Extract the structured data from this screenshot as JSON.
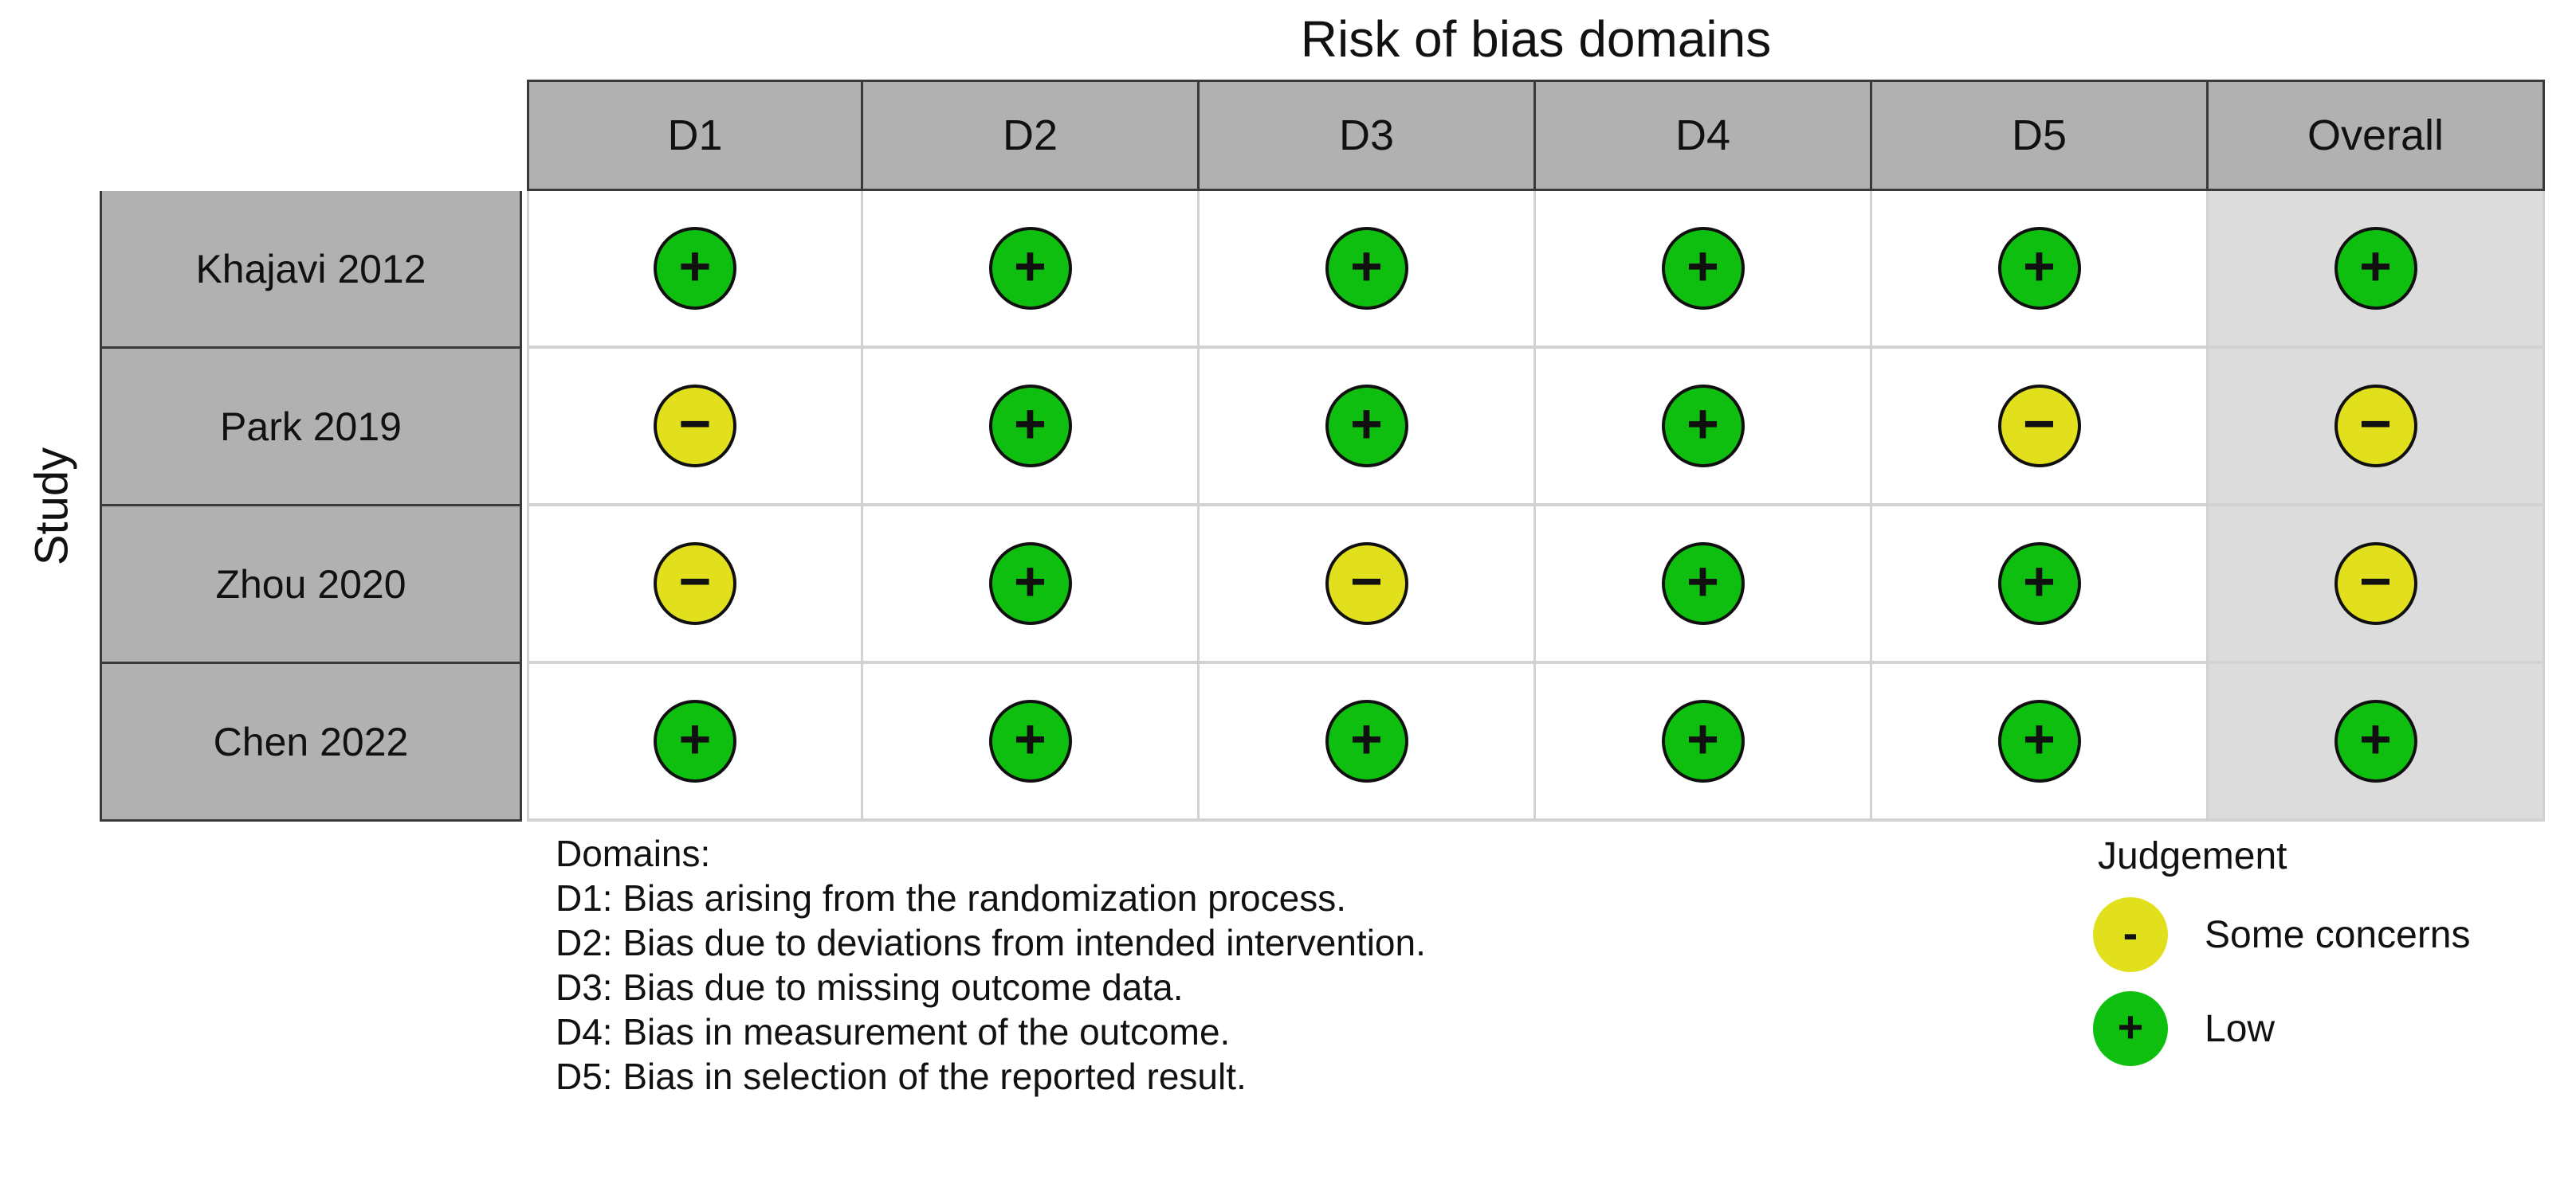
{
  "title": "Risk of bias domains",
  "y_axis_label": "Study",
  "columns": [
    "D1",
    "D2",
    "D3",
    "D4",
    "D5",
    "Overall"
  ],
  "matrix": {
    "rows": [
      {
        "study": "Khajavi 2012",
        "cells": [
          {
            "judgement": "low",
            "symbol": "+"
          },
          {
            "judgement": "low",
            "symbol": "+"
          },
          {
            "judgement": "low",
            "symbol": "+"
          },
          {
            "judgement": "low",
            "symbol": "+"
          },
          {
            "judgement": "low",
            "symbol": "+"
          },
          {
            "judgement": "low",
            "symbol": "+"
          }
        ]
      },
      {
        "study": "Park 2019",
        "cells": [
          {
            "judgement": "some-concerns",
            "symbol": "−"
          },
          {
            "judgement": "low",
            "symbol": "+"
          },
          {
            "judgement": "low",
            "symbol": "+"
          },
          {
            "judgement": "low",
            "symbol": "+"
          },
          {
            "judgement": "some-concerns",
            "symbol": "−"
          },
          {
            "judgement": "some-concerns",
            "symbol": "−"
          }
        ]
      },
      {
        "study": "Zhou 2020",
        "cells": [
          {
            "judgement": "some-concerns",
            "symbol": "−"
          },
          {
            "judgement": "low",
            "symbol": "+"
          },
          {
            "judgement": "some-concerns",
            "symbol": "−"
          },
          {
            "judgement": "low",
            "symbol": "+"
          },
          {
            "judgement": "low",
            "symbol": "+"
          },
          {
            "judgement": "some-concerns",
            "symbol": "−"
          }
        ]
      },
      {
        "study": "Chen 2022",
        "cells": [
          {
            "judgement": "low",
            "symbol": "+"
          },
          {
            "judgement": "low",
            "symbol": "+"
          },
          {
            "judgement": "low",
            "symbol": "+"
          },
          {
            "judgement": "low",
            "symbol": "+"
          },
          {
            "judgement": "low",
            "symbol": "+"
          },
          {
            "judgement": "low",
            "symbol": "+"
          }
        ]
      }
    ]
  },
  "footnotes": {
    "heading": "Domains:",
    "lines": [
      "D1: Bias arising from the randomization process.",
      "D2: Bias due to deviations from intended intervention.",
      "D3: Bias due to missing outcome data.",
      "D4: Bias in measurement of the outcome.",
      "D5: Bias in selection of the reported result."
    ]
  },
  "legend": {
    "title": "Judgement",
    "items": [
      {
        "symbol": "-",
        "label": "Some concerns",
        "judgement": "some-concerns",
        "color": "#e2df1d"
      },
      {
        "symbol": "+",
        "label": "Low",
        "judgement": "low",
        "color": "#0fbf0f"
      }
    ]
  },
  "colors": {
    "low": "#0fbf0f",
    "some_concerns": "#e2df1d",
    "header_bg": "#b1b1b1",
    "overall_column_bg": "#dcdcdc",
    "dark_border": "#3a3a3a",
    "light_grid": "#d2d2d2"
  },
  "chart_data": {
    "type": "table",
    "subtype": "risk-of-bias-traffic-light",
    "title": "Risk of bias domains",
    "ylabel": "Study",
    "columns": [
      "D1",
      "D2",
      "D3",
      "D4",
      "D5",
      "Overall"
    ],
    "rows": [
      "Khajavi 2012",
      "Park 2019",
      "Zhou 2020",
      "Chen 2022"
    ],
    "values": [
      [
        "Low",
        "Low",
        "Low",
        "Low",
        "Low",
        "Low"
      ],
      [
        "Some concerns",
        "Low",
        "Low",
        "Low",
        "Some concerns",
        "Some concerns"
      ],
      [
        "Some concerns",
        "Low",
        "Some concerns",
        "Low",
        "Low",
        "Some concerns"
      ],
      [
        "Low",
        "Low",
        "Low",
        "Low",
        "Low",
        "Low"
      ]
    ],
    "legend_position": "bottom-right",
    "legend": {
      "title": "Judgement",
      "entries": [
        {
          "label": "Some concerns",
          "symbol": "-",
          "color": "#e2df1d"
        },
        {
          "label": "Low",
          "symbol": "+",
          "color": "#0fbf0f"
        }
      ]
    },
    "footnotes": [
      "D1: Bias arising from the randomization process.",
      "D2: Bias due to deviations from intended intervention.",
      "D3: Bias due to missing outcome data.",
      "D4: Bias in measurement of the outcome.",
      "D5: Bias in selection of the reported result."
    ]
  }
}
